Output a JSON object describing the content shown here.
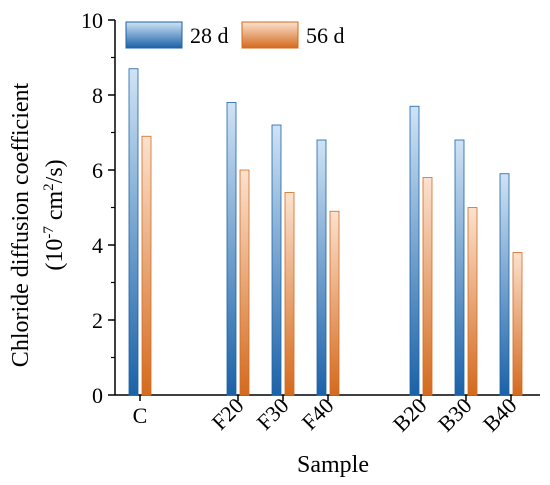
{
  "chart_data": {
    "type": "bar",
    "ylabel_line1": "Chloride diffusion coefficient",
    "ylabel_line2_prefix": "(10",
    "ylabel_line2_exp": "-7",
    "ylabel_line2_mid": " cm",
    "ylabel_line2_exp2": "2",
    "ylabel_line2_suffix": "/s)",
    "xlabel": "Sample",
    "ylim": [
      0,
      10
    ],
    "yticks": [
      "0",
      "2",
      "4",
      "6",
      "8",
      "10"
    ],
    "categories": [
      "C",
      "F20",
      "F30",
      "F40",
      "B20",
      "B30",
      "B40"
    ],
    "series": [
      {
        "name": "28 d",
        "values": [
          8.7,
          7.8,
          7.2,
          6.8,
          7.7,
          6.8,
          5.9
        ]
      },
      {
        "name": "56 d",
        "values": [
          6.9,
          6.0,
          5.4,
          4.9,
          5.8,
          5.0,
          3.8
        ]
      }
    ],
    "legend_position": "top-left",
    "colors": {
      "series1_top": "#cfe3f5",
      "series1_bottom": "#1b62a8",
      "series2_top": "#fbe2cf",
      "series2_bottom": "#d46a1e"
    }
  }
}
